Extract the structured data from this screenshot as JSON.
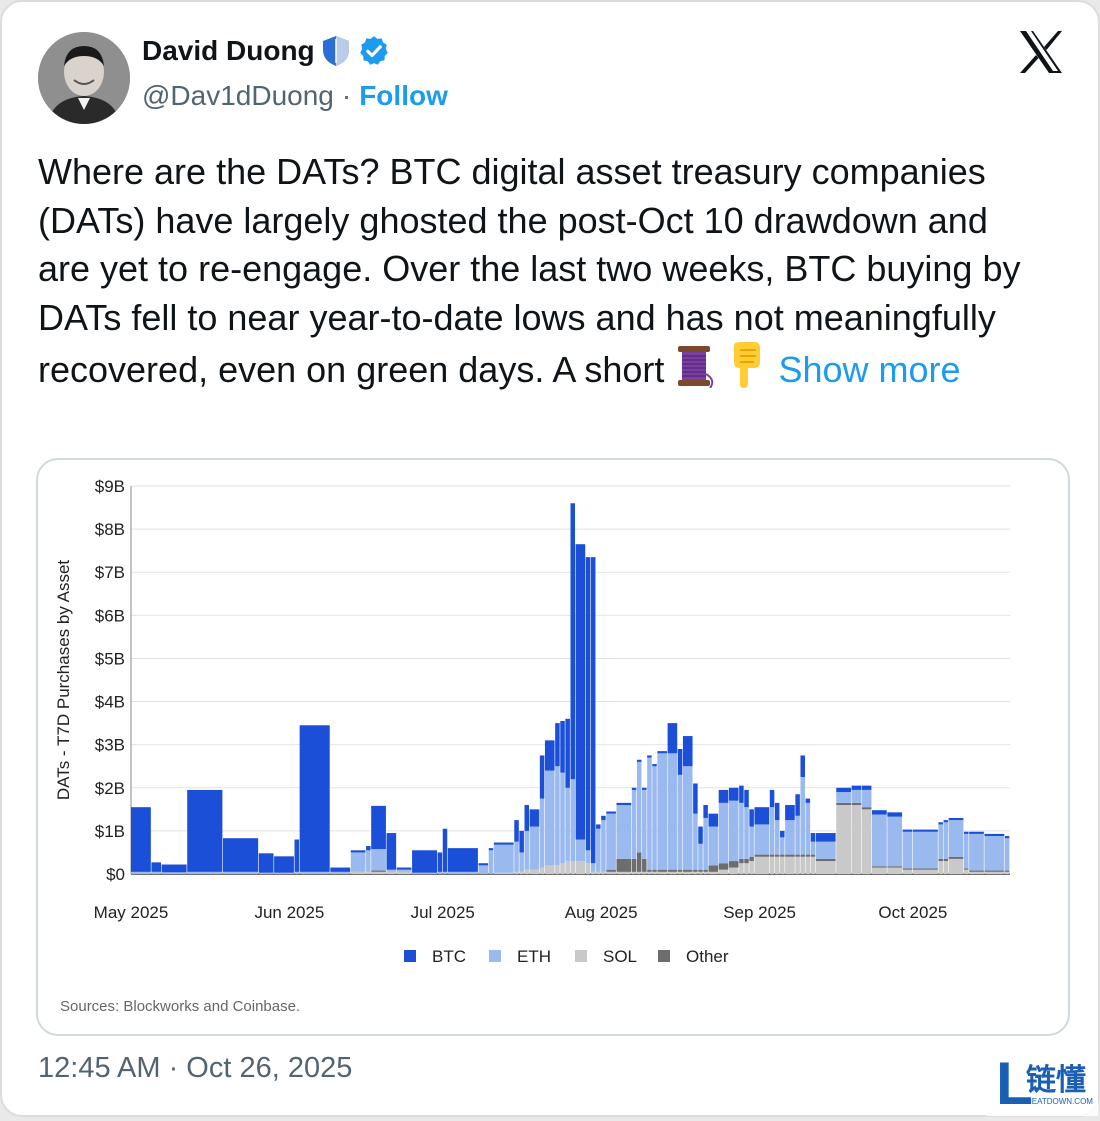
{
  "author": {
    "name": "David Duong",
    "handle": "@Dav1dDuong",
    "separator": "·",
    "follow_label": "Follow"
  },
  "tweet": {
    "text": "Where are the DATs? BTC digital asset treasury companies (DATs) have largely ghosted the post-Oct 10 drawdown and are yet to re-engage. Over the last two weeks, BTC buying by DATs fell to near year-to-date lows and has not meaningfully recovered, even on green days. A short",
    "emojis": [
      "thread-spool",
      "pointing-down"
    ],
    "show_more_label": "Show more",
    "timestamp": "12:45 AM · Oct 26, 2025"
  },
  "chart_data": {
    "type": "bar",
    "stacked": true,
    "ylabel": "DATs - T7D Purchases by Asset",
    "y_ticks": [
      "$0",
      "$1B",
      "$2B",
      "$3B",
      "$4B",
      "$5B",
      "$6B",
      "$7B",
      "$8B",
      "$9B"
    ],
    "ylim": [
      0,
      9
    ],
    "unit": "$B",
    "x_ticks": [
      "May 2025",
      "Jun 2025",
      "Jul 2025",
      "Aug 2025",
      "Sep 2025",
      "Oct 2025"
    ],
    "x_tick_days": [
      0,
      31,
      61,
      92,
      123,
      153
    ],
    "grid": true,
    "legend_position": "bottom",
    "series": [
      {
        "name": "BTC",
        "color": "#1b4fd8"
      },
      {
        "name": "ETH",
        "color": "#9ab9ef"
      },
      {
        "name": "SOL",
        "color": "#c9c9c9"
      },
      {
        "name": "Other",
        "color": "#6d6d6d"
      }
    ],
    "segments": [
      {
        "start": 0,
        "end": 4,
        "BTC": 1.5,
        "ETH": 0.05,
        "SOL": 0,
        "Other": 0
      },
      {
        "start": 4,
        "end": 6,
        "BTC": 0.22,
        "ETH": 0.05,
        "SOL": 0,
        "Other": 0
      },
      {
        "start": 6,
        "end": 11,
        "BTC": 0.18,
        "ETH": 0.04,
        "SOL": 0,
        "Other": 0
      },
      {
        "start": 11,
        "end": 18,
        "BTC": 1.9,
        "ETH": 0.05,
        "SOL": 0,
        "Other": 0
      },
      {
        "start": 18,
        "end": 25,
        "BTC": 0.78,
        "ETH": 0.05,
        "SOL": 0,
        "Other": 0
      },
      {
        "start": 25,
        "end": 28,
        "BTC": 0.45,
        "ETH": 0.03,
        "SOL": 0,
        "Other": 0
      },
      {
        "start": 28,
        "end": 32,
        "BTC": 0.38,
        "ETH": 0.03,
        "SOL": 0,
        "Other": 0
      },
      {
        "start": 32,
        "end": 33,
        "BTC": 0.75,
        "ETH": 0.05,
        "SOL": 0,
        "Other": 0
      },
      {
        "start": 33,
        "end": 39,
        "BTC": 3.4,
        "ETH": 0.05,
        "SOL": 0,
        "Other": 0
      },
      {
        "start": 39,
        "end": 43,
        "BTC": 0.1,
        "ETH": 0.05,
        "SOL": 0,
        "Other": 0
      },
      {
        "start": 43,
        "end": 46,
        "BTC": 0.05,
        "ETH": 0.45,
        "SOL": 0.05,
        "Other": 0
      },
      {
        "start": 46,
        "end": 47,
        "BTC": 0.1,
        "ETH": 0.5,
        "SOL": 0.05,
        "Other": 0
      },
      {
        "start": 47,
        "end": 50,
        "BTC": 1.0,
        "ETH": 0.5,
        "SOL": 0.05,
        "Other": 0.03
      },
      {
        "start": 50,
        "end": 52,
        "BTC": 0.85,
        "ETH": 0.05,
        "SOL": 0.05,
        "Other": 0
      },
      {
        "start": 52,
        "end": 55,
        "BTC": 0.05,
        "ETH": 0.05,
        "SOL": 0.05,
        "Other": 0
      },
      {
        "start": 55,
        "end": 60,
        "BTC": 0.52,
        "ETH": 0.03,
        "SOL": 0,
        "Other": 0
      },
      {
        "start": 60,
        "end": 61,
        "BTC": 0.45,
        "ETH": 0.05,
        "SOL": 0,
        "Other": 0
      },
      {
        "start": 61,
        "end": 62,
        "BTC": 1.0,
        "ETH": 0.05,
        "SOL": 0,
        "Other": 0
      },
      {
        "start": 62,
        "end": 68,
        "BTC": 0.55,
        "ETH": 0.05,
        "SOL": 0,
        "Other": 0
      },
      {
        "start": 68,
        "end": 70,
        "BTC": 0.05,
        "ETH": 0.2,
        "SOL": 0,
        "Other": 0
      },
      {
        "start": 70,
        "end": 71,
        "BTC": 0.05,
        "ETH": 0.55,
        "SOL": 0,
        "Other": 0
      },
      {
        "start": 71,
        "end": 75,
        "BTC": 0.05,
        "ETH": 0.65,
        "SOL": 0.03,
        "Other": 0
      },
      {
        "start": 75,
        "end": 76,
        "BTC": 0.5,
        "ETH": 0.7,
        "SOL": 0.05,
        "Other": 0
      },
      {
        "start": 76,
        "end": 77,
        "BTC": 0.5,
        "ETH": 0.45,
        "SOL": 0.05,
        "Other": 0
      },
      {
        "start": 77,
        "end": 78,
        "BTC": 0.6,
        "ETH": 0.9,
        "SOL": 0.1,
        "Other": 0
      },
      {
        "start": 78,
        "end": 80,
        "BTC": 0.4,
        "ETH": 1.0,
        "SOL": 0.1,
        "Other": 0
      },
      {
        "start": 80,
        "end": 81,
        "BTC": 1.0,
        "ETH": 1.6,
        "SOL": 0.15,
        "Other": 0
      },
      {
        "start": 81,
        "end": 83,
        "BTC": 0.7,
        "ETH": 2.2,
        "SOL": 0.2,
        "Other": 0
      },
      {
        "start": 83,
        "end": 84,
        "BTC": 1.0,
        "ETH": 2.3,
        "SOL": 0.2,
        "Other": 0
      },
      {
        "start": 84,
        "end": 85,
        "BTC": 1.2,
        "ETH": 2.1,
        "SOL": 0.25,
        "Other": 0
      },
      {
        "start": 85,
        "end": 86,
        "BTC": 1.6,
        "ETH": 1.7,
        "SOL": 0.3,
        "Other": 0
      },
      {
        "start": 86,
        "end": 87,
        "BTC": 6.4,
        "ETH": 1.9,
        "SOL": 0.3,
        "Other": 0
      },
      {
        "start": 87,
        "end": 89,
        "BTC": 6.85,
        "ETH": 0.5,
        "SOL": 0.3,
        "Other": 0
      },
      {
        "start": 89,
        "end": 90,
        "BTC": 6.8,
        "ETH": 0.3,
        "SOL": 0.25,
        "Other": 0
      },
      {
        "start": 90,
        "end": 91,
        "BTC": 7.1,
        "ETH": 0.2,
        "SOL": 0.05,
        "Other": 0
      },
      {
        "start": 91,
        "end": 92,
        "BTC": 0.1,
        "ETH": 1.0,
        "SOL": 0.05,
        "Other": 0
      },
      {
        "start": 92,
        "end": 93,
        "BTC": 0.1,
        "ETH": 1.2,
        "SOL": 0.05,
        "Other": 0
      },
      {
        "start": 93,
        "end": 95,
        "BTC": 0.05,
        "ETH": 1.3,
        "SOL": 0.05,
        "Other": 0.05
      },
      {
        "start": 95,
        "end": 98,
        "BTC": 0.05,
        "ETH": 1.25,
        "SOL": 0.05,
        "Other": 0.3
      },
      {
        "start": 98,
        "end": 99,
        "BTC": 0.05,
        "ETH": 1.6,
        "SOL": 0.05,
        "Other": 0.3
      },
      {
        "start": 99,
        "end": 100,
        "BTC": 0.05,
        "ETH": 2.1,
        "SOL": 0.05,
        "Other": 0.45
      },
      {
        "start": 100,
        "end": 101,
        "BTC": 0.05,
        "ETH": 1.6,
        "SOL": 0.05,
        "Other": 0.3
      },
      {
        "start": 101,
        "end": 102,
        "BTC": 0.05,
        "ETH": 2.6,
        "SOL": 0.05,
        "Other": 0.05
      },
      {
        "start": 102,
        "end": 103,
        "BTC": 0.05,
        "ETH": 2.4,
        "SOL": 0.05,
        "Other": 0.05
      },
      {
        "start": 103,
        "end": 105,
        "BTC": 0.05,
        "ETH": 2.7,
        "SOL": 0.05,
        "Other": 0.05
      },
      {
        "start": 105,
        "end": 107,
        "BTC": 0.7,
        "ETH": 2.7,
        "SOL": 0.05,
        "Other": 0.05
      },
      {
        "start": 107,
        "end": 108,
        "BTC": 0.6,
        "ETH": 2.2,
        "SOL": 0.05,
        "Other": 0.05
      },
      {
        "start": 108,
        "end": 110,
        "BTC": 0.7,
        "ETH": 2.4,
        "SOL": 0.05,
        "Other": 0.05
      },
      {
        "start": 110,
        "end": 111,
        "BTC": 0.7,
        "ETH": 1.3,
        "SOL": 0.05,
        "Other": 0.05
      },
      {
        "start": 111,
        "end": 112,
        "BTC": 0.4,
        "ETH": 0.6,
        "SOL": 0.05,
        "Other": 0.05
      },
      {
        "start": 112,
        "end": 113,
        "BTC": 0.3,
        "ETH": 1.2,
        "SOL": 0.05,
        "Other": 0.05
      },
      {
        "start": 113,
        "end": 115,
        "BTC": 0.3,
        "ETH": 0.9,
        "SOL": 0.05,
        "Other": 0.15
      },
      {
        "start": 115,
        "end": 117,
        "BTC": 0.3,
        "ETH": 1.4,
        "SOL": 0.1,
        "Other": 0.15
      },
      {
        "start": 117,
        "end": 119,
        "BTC": 0.3,
        "ETH": 1.4,
        "SOL": 0.15,
        "Other": 0.15
      },
      {
        "start": 119,
        "end": 120,
        "BTC": 0.4,
        "ETH": 1.3,
        "SOL": 0.25,
        "Other": 0.1
      },
      {
        "start": 120,
        "end": 121,
        "BTC": 0.4,
        "ETH": 1.2,
        "SOL": 0.25,
        "Other": 0.1
      },
      {
        "start": 121,
        "end": 122,
        "BTC": 0.4,
        "ETH": 0.7,
        "SOL": 0.3,
        "Other": 0.1
      },
      {
        "start": 122,
        "end": 125,
        "BTC": 0.4,
        "ETH": 0.7,
        "SOL": 0.4,
        "Other": 0.05
      },
      {
        "start": 125,
        "end": 126,
        "BTC": 0.4,
        "ETH": 1.1,
        "SOL": 0.4,
        "Other": 0.05
      },
      {
        "start": 126,
        "end": 127,
        "BTC": 0.4,
        "ETH": 0.8,
        "SOL": 0.4,
        "Other": 0.05
      },
      {
        "start": 127,
        "end": 128,
        "BTC": 0.15,
        "ETH": 0.4,
        "SOL": 0.4,
        "Other": 0.05
      },
      {
        "start": 128,
        "end": 130,
        "BTC": 0.35,
        "ETH": 0.8,
        "SOL": 0.4,
        "Other": 0.05
      },
      {
        "start": 130,
        "end": 131,
        "BTC": 0.5,
        "ETH": 0.9,
        "SOL": 0.4,
        "Other": 0.05
      },
      {
        "start": 131,
        "end": 132,
        "BTC": 0.5,
        "ETH": 1.8,
        "SOL": 0.4,
        "Other": 0.05
      },
      {
        "start": 132,
        "end": 133,
        "BTC": 0.1,
        "ETH": 1.2,
        "SOL": 0.4,
        "Other": 0.05
      },
      {
        "start": 133,
        "end": 134,
        "BTC": 0.2,
        "ETH": 0.3,
        "SOL": 0.4,
        "Other": 0.05
      },
      {
        "start": 134,
        "end": 138,
        "BTC": 0.2,
        "ETH": 0.4,
        "SOL": 0.3,
        "Other": 0.05
      },
      {
        "start": 138,
        "end": 141,
        "BTC": 0.1,
        "ETH": 0.25,
        "SOL": 1.6,
        "Other": 0.05
      },
      {
        "start": 141,
        "end": 143,
        "BTC": 0.1,
        "ETH": 0.3,
        "SOL": 1.6,
        "Other": 0.05
      },
      {
        "start": 143,
        "end": 145,
        "BTC": 0.1,
        "ETH": 0.4,
        "SOL": 1.5,
        "Other": 0.05
      },
      {
        "start": 145,
        "end": 148,
        "BTC": 0.1,
        "ETH": 1.2,
        "SOL": 0.15,
        "Other": 0.03
      },
      {
        "start": 148,
        "end": 151,
        "BTC": 0.1,
        "ETH": 1.15,
        "SOL": 0.15,
        "Other": 0.03
      },
      {
        "start": 151,
        "end": 153,
        "BTC": 0.05,
        "ETH": 0.85,
        "SOL": 0.1,
        "Other": 0.03
      },
      {
        "start": 153,
        "end": 158,
        "BTC": 0.05,
        "ETH": 0.85,
        "SOL": 0.1,
        "Other": 0.03
      },
      {
        "start": 158,
        "end": 159,
        "BTC": 0.05,
        "ETH": 0.8,
        "SOL": 0.3,
        "Other": 0.05
      },
      {
        "start": 159,
        "end": 160,
        "BTC": 0.05,
        "ETH": 0.85,
        "SOL": 0.3,
        "Other": 0.05
      },
      {
        "start": 160,
        "end": 163,
        "BTC": 0.05,
        "ETH": 0.85,
        "SOL": 0.35,
        "Other": 0.05
      },
      {
        "start": 163,
        "end": 164,
        "BTC": 0.05,
        "ETH": 0.8,
        "SOL": 0.1,
        "Other": 0.03
      },
      {
        "start": 164,
        "end": 167,
        "BTC": 0.05,
        "ETH": 0.85,
        "SOL": 0.05,
        "Other": 0.03
      },
      {
        "start": 167,
        "end": 171,
        "BTC": 0.05,
        "ETH": 0.8,
        "SOL": 0.05,
        "Other": 0.03
      },
      {
        "start": 171,
        "end": 172,
        "BTC": 0.05,
        "ETH": 0.75,
        "SOL": 0.05,
        "Other": 0.03
      }
    ],
    "x_max_days": 172,
    "source_note": "Sources: Blockworks and Coinbase."
  },
  "watermark": {
    "logo_letter": "L",
    "text": "链懂",
    "subtext": "NEATDOWN.COM"
  },
  "colors": {
    "accent": "#1d9bf0",
    "text": "#0f1419",
    "muted": "#536471",
    "verified": "#1d9bf0"
  }
}
